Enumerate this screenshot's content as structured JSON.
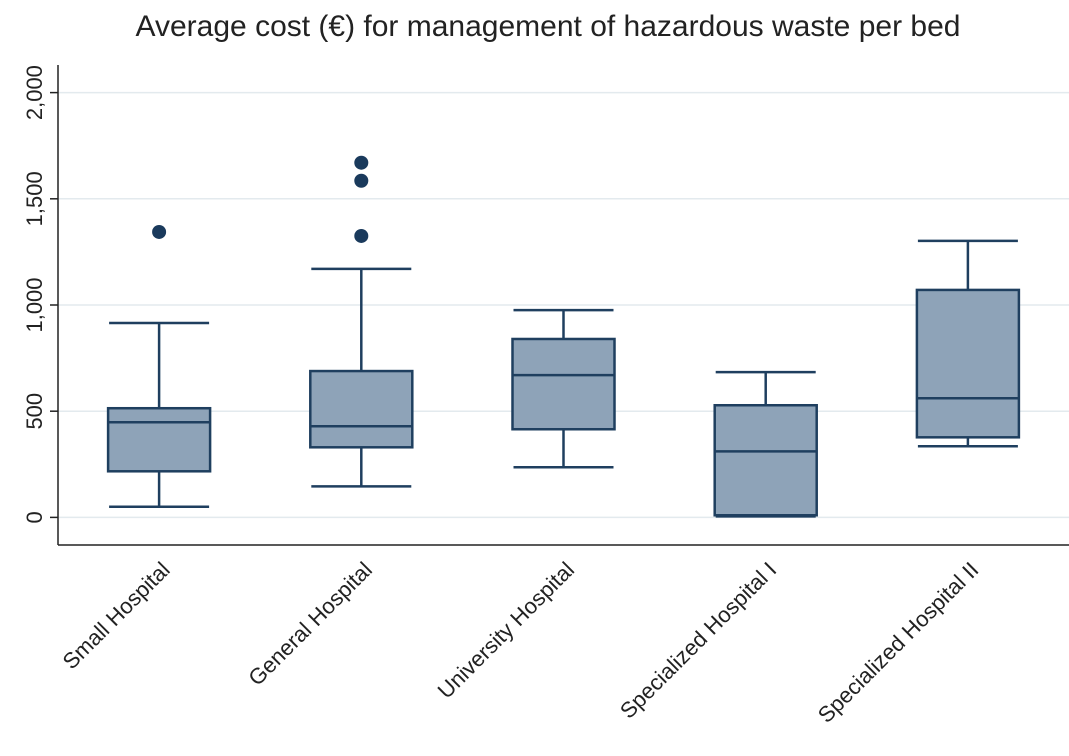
{
  "chart_data": {
    "type": "box",
    "title": "Average cost (€) for management of hazardous waste per bed",
    "categories": [
      "Small Hospital",
      "General Hospital",
      "University Hospital",
      "Specialized Hospital I",
      "Specialized Hospital II"
    ],
    "boxes": [
      {
        "min": 50,
        "q1": 217,
        "median": 448,
        "q3": 514,
        "max": 915,
        "outliers": [
          1344
        ]
      },
      {
        "min": 146,
        "q1": 330,
        "median": 429,
        "q3": 689,
        "max": 1170,
        "outliers": [
          1325,
          1585,
          1670
        ]
      },
      {
        "min": 236,
        "q1": 415,
        "median": 670,
        "q3": 840,
        "max": 976,
        "outliers": []
      },
      {
        "min": 5,
        "q1": 10,
        "median": 311,
        "q3": 528,
        "max": 684,
        "outliers": []
      },
      {
        "min": 335,
        "q1": 377,
        "median": 561,
        "q3": 1071,
        "max": 1302,
        "outliers": []
      }
    ],
    "color": "#8ea3b8",
    "line_color": "#1f3f5f",
    "outlier_color": "#1a3a5c",
    "ylim": [
      -130,
      2130
    ],
    "yticks": [
      0,
      500,
      {
        "value": 1000,
        "label": "1,000"
      },
      {
        "value": 1500,
        "label": "1,500"
      },
      {
        "value": 2000,
        "label": "2,000"
      }
    ],
    "grid": true
  }
}
